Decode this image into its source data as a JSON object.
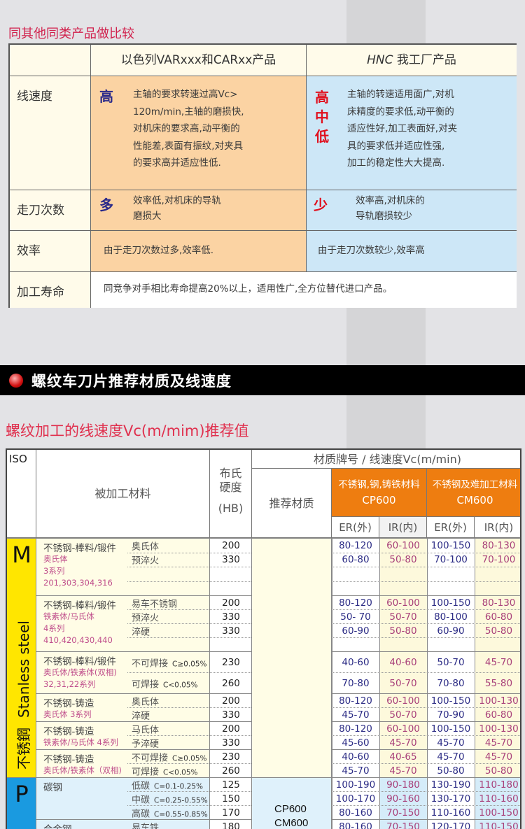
{
  "compare": {
    "title": "同其他同类产品做比较",
    "col_a": "以色列VARxxx和CARxx产品",
    "col_b_brand": "HNC",
    "col_b": " 我工厂产品",
    "rows": [
      {
        "label": "线速度",
        "a_mark": "高",
        "a_lines": [
          "主轴的要求转速过高Vc>",
          "120m/min,主轴的磨损快,",
          "对机床的要求高,动平衡的",
          "性能差,表面有振纹,对夹具",
          "的要求高并适应性低."
        ],
        "b_mark": [
          "高",
          "中",
          "低"
        ],
        "b_lines": [
          "主轴的转速适用面广,对机",
          "床精度的要求低,动平衡的",
          "适应性好,加工表面好,对夹",
          "具的要求低并适应性强,",
          "加工的稳定性大大提高."
        ]
      },
      {
        "label": "走刀次数",
        "a_mark": "多",
        "a_lines": [
          "效率低,对机床的导轨",
          "磨损大"
        ],
        "b_mark": [
          "少"
        ],
        "b_lines": [
          "效率高,对机床的",
          "导轨磨损较少"
        ]
      },
      {
        "label": "效率",
        "a_text": "由于走刀次数过多,效率低.",
        "b_text": "由于走刀次数较少,效率高"
      },
      {
        "label": "加工寿命",
        "text": "同竞争对手相比寿命提高20%以上，适用性广,全方位替代进口产品。"
      }
    ],
    "colors": {
      "title": "#d1204c",
      "orange": "#fbd3a3",
      "blue": "#cde7f7",
      "mark_blue": "#2a2a8a",
      "mark_red": "#e0101e"
    }
  },
  "banner": {
    "title": "螺纹车刀片推荐材质及线速度"
  },
  "speed": {
    "title": "螺纹加工的线速度Vc(m/mim)推荐值",
    "head": {
      "iso": "ISO",
      "material": "被加工材料",
      "hardness": "布氏硬度",
      "hardness_unit": "(HB)",
      "grade_speed": "材质牌号 / 线速度Vc(m/min)",
      "recommend": "推荐材质",
      "grade1_desc": "不锈钢,钢,铸铁材料",
      "grade1": "CP600",
      "grade2_desc": "不锈钢及难加工材料",
      "grade2": "CM600",
      "er": "ER(外)",
      "ir": "IR(内)"
    },
    "sections": [
      {
        "iso": "M",
        "name_en": "Stanless steel",
        "name_cn": "不锈鋼",
        "color": "#ffe600",
        "recommend": []
      },
      {
        "iso": "P",
        "color": "#1a9ae0",
        "recommend": [
          "CP600",
          "CM600"
        ]
      }
    ],
    "groups": [
      {
        "section": 0,
        "main": "不锈钢-棒料/锻件",
        "sub": [
          "奥氏体",
          "3系列",
          "201,303,304,316"
        ],
        "rows": [
          {
            "cond": "奥氏体",
            "hb": "200",
            "v": [
              "80-120",
              "60-100",
              "100-150",
              "80-130"
            ]
          },
          {
            "cond": "预淬火",
            "hb": "330",
            "v": [
              "60-80",
              "50-80",
              "70-100",
              "70-100"
            ]
          },
          {},
          {}
        ]
      },
      {
        "section": 0,
        "main": "不锈钢-棒料/锻件",
        "sub": [
          "铁素体/马氏体",
          "4系列",
          "410,420,430,440"
        ],
        "rows": [
          {
            "cond": "易车不锈钢",
            "hb": "200",
            "v": [
              "80-120",
              "60-100",
              "100-150",
              "80-130"
            ]
          },
          {
            "cond": "预淬火",
            "hb": "330",
            "v": [
              "50- 70",
              "50-70",
              "80-100",
              "60-80"
            ]
          },
          {
            "cond": "淬硬",
            "hb": "330",
            "v": [
              "60-90",
              "50-80",
              "60-90",
              "50-80"
            ]
          },
          {}
        ]
      },
      {
        "section": 0,
        "main": "不锈钢-棒料/锻件",
        "sub": [
          "奥氏体/铁素体(双相)",
          "32,31,22系列"
        ],
        "rows": [
          {
            "cond": "不可焊接",
            "note": "C≥0.05%",
            "hb": "230",
            "v": [
              "40-60",
              "40-60",
              "50-70",
              "45-70"
            ]
          },
          {
            "cond": "可焊接",
            "note": "C<0.05%",
            "hb": "260",
            "v": [
              "70-80",
              "50-70",
              "70-80",
              "55-80"
            ]
          }
        ]
      },
      {
        "section": 0,
        "main": "不锈钢-铸造",
        "sub": [
          "奥氏体 3系列"
        ],
        "rows": [
          {
            "cond": "奥氏体",
            "hb": "200",
            "v": [
              "80-120",
              "60-100",
              "100-150",
              "100-130"
            ]
          },
          {
            "cond": "淬硬",
            "hb": "330",
            "v": [
              "45-70",
              "50-70",
              "70-90",
              "60-80"
            ]
          }
        ]
      },
      {
        "section": 0,
        "main": "不锈钢-铸造",
        "sub": [
          "铁素体/马氏体 4系列"
        ],
        "rows": [
          {
            "cond": "马氏体",
            "hb": "200",
            "v": [
              "80-120",
              "60-100",
              "100-150",
              "100-130"
            ]
          },
          {
            "cond": "予淬硬",
            "hb": "330",
            "v": [
              "45-60",
              "45-70",
              "45-70",
              "45-70"
            ]
          }
        ]
      },
      {
        "section": 0,
        "main": "不锈钢-铸造",
        "sub": [
          "奥氏体/铁素体（双相)"
        ],
        "rows": [
          {
            "cond": "不可焊接",
            "note": "C≥0.05%",
            "hb": "230",
            "v": [
              "40-60",
              "40-65",
              "45-70",
              "45-70"
            ]
          },
          {
            "cond": "可焊接",
            "note": "C<0.05%",
            "hb": "260",
            "v": [
              "45-70",
              "45-70",
              "50-80",
              "50-80"
            ]
          }
        ]
      },
      {
        "section": 1,
        "main": "碳钢",
        "sub": [],
        "rows": [
          {
            "cond": "低碳",
            "note": "C=0.1-0.25%",
            "hb": "125",
            "v": [
              "100-190",
              "90-180",
              "130-190",
              "110-180"
            ]
          },
          {
            "cond": "中碳",
            "note": "C=0.25-0.55%",
            "hb": "150",
            "v": [
              "100-170",
              "90-160",
              "130-170",
              "110-160"
            ]
          },
          {
            "cond": "高碳",
            "note": "C=0.55-0.85%",
            "hb": "170",
            "v": [
              "80-160",
              "70-150",
              "110-160",
              "100-150"
            ]
          }
        ]
      },
      {
        "section": 1,
        "main": "合金钢",
        "sub": [],
        "rows": [
          {
            "cond": "易车铁",
            "hb": "180",
            "v": [
              "80-160",
              "70-150",
              "120-170",
              "110-150"
            ]
          },
          {}
        ]
      }
    ]
  }
}
